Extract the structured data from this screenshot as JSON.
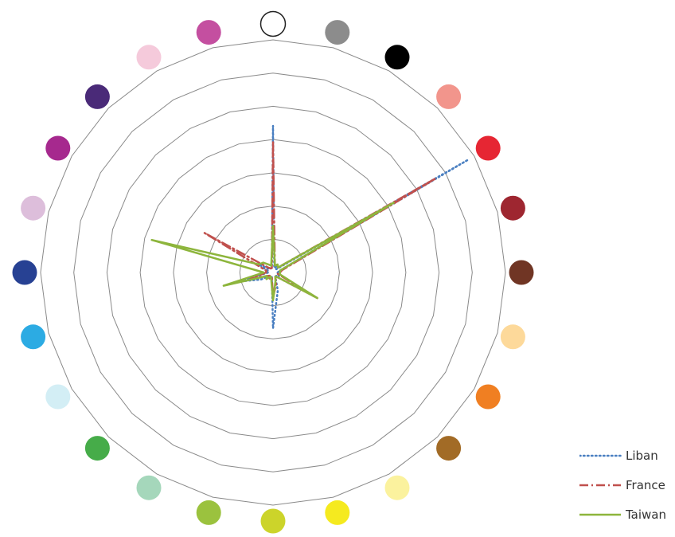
{
  "chart_data": {
    "type": "radar",
    "title": "",
    "categories": [
      "white",
      "gray",
      "black",
      "salmon",
      "red",
      "crimson",
      "brown",
      "peach",
      "orange",
      "ochre",
      "pale yellow",
      "yellow",
      "yellow-green",
      "olive green",
      "mint",
      "green",
      "pale blue",
      "sky blue",
      "navy",
      "lilac",
      "magenta",
      "indigo",
      "pale pink",
      "pink"
    ],
    "category_colors": [
      "#ffffff",
      "#8c8c8c",
      "#000000",
      "#f2958c",
      "#e62633",
      "#9e2630",
      "#703524",
      "#fdd99a",
      "#f07f22",
      "#a26b26",
      "#fbf29e",
      "#f5ea1f",
      "#ccd42a",
      "#9bc23e",
      "#a5d7bb",
      "#46ac49",
      "#d3eef5",
      "#2cabe3",
      "#274193",
      "#ddbedb",
      "#a6298e",
      "#4a2a78",
      "#f5cadb",
      "#c44fa0"
    ],
    "rmax": 1.0,
    "rings": 7,
    "grid": true,
    "legend_position": "bottom-right",
    "series": [
      {
        "name": "Liban",
        "color": "#4a7fc1",
        "style": "dotted",
        "values": [
          0.63,
          0.02,
          0.03,
          0.02,
          0.97,
          0.03,
          0.02,
          0.02,
          0.03,
          0.02,
          0.02,
          0.08,
          0.24,
          0.02,
          0.02,
          0.02,
          0.06,
          0.15,
          0.02,
          0.02,
          0.07,
          0.02,
          0.02,
          0.02
        ]
      },
      {
        "name": "France",
        "color": "#c0504d",
        "style": "dashdot",
        "values": [
          0.56,
          0.03,
          0.04,
          0.03,
          0.81,
          0.04,
          0.03,
          0.02,
          0.22,
          0.03,
          0.02,
          0.05,
          0.11,
          0.02,
          0.03,
          0.02,
          0.03,
          0.1,
          0.03,
          0.03,
          0.34,
          0.03,
          0.02,
          0.02
        ]
      },
      {
        "name": "Taiwan",
        "color": "#8db53c",
        "style": "solid",
        "values": [
          0.2,
          0.03,
          0.04,
          0.03,
          0.6,
          0.03,
          0.03,
          0.03,
          0.22,
          0.03,
          0.02,
          0.04,
          0.12,
          0.03,
          0.02,
          0.04,
          0.03,
          0.22,
          0.04,
          0.54,
          0.07,
          0.06,
          0.04,
          0.03
        ]
      }
    ]
  }
}
